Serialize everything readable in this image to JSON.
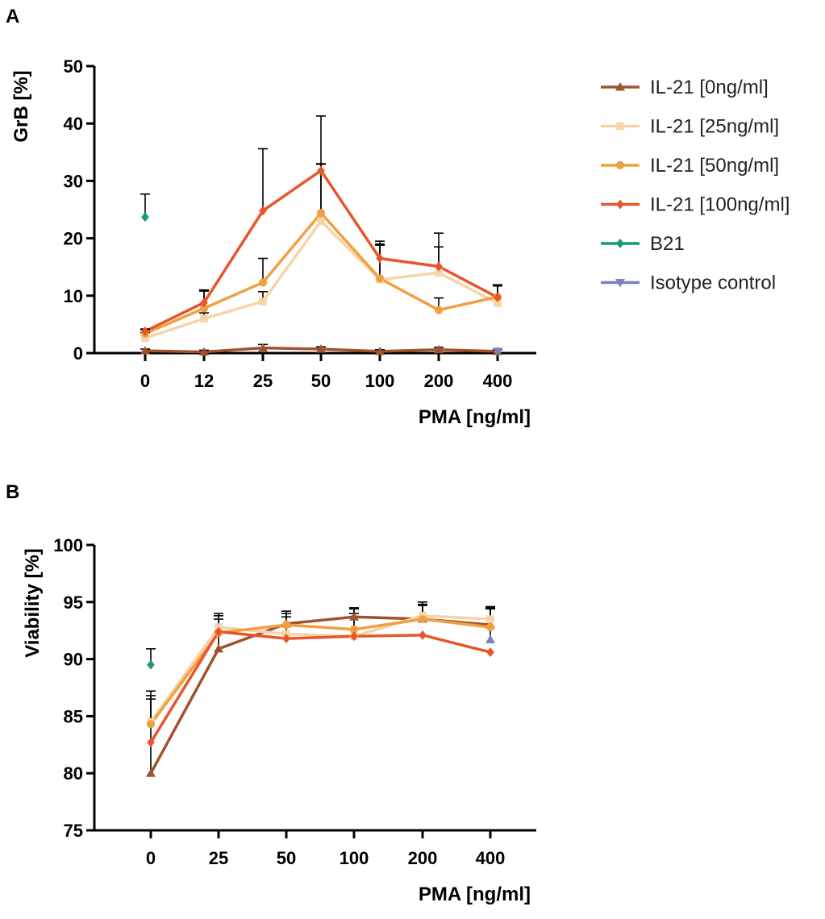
{
  "chart_data": [
    {
      "panel": "A",
      "type": "line",
      "xlabel": "PMA [ng/ml]",
      "ylabel": "GrB [%]",
      "categories": [
        "0",
        "12",
        "25",
        "50",
        "100",
        "200",
        "400"
      ],
      "ylim": [
        0,
        50
      ],
      "yticks": [
        0,
        10,
        20,
        30,
        40,
        50
      ],
      "series": [
        {
          "name": "IL-21 [0ng/ml]",
          "color": "#a0522d",
          "marker": "triangle-up",
          "values": [
            0.4,
            0.2,
            0.9,
            0.7,
            0.3,
            0.6,
            0.3
          ],
          "errors": [
            0.3,
            0.3,
            0.6,
            0.4,
            0.3,
            0.4,
            0.3
          ]
        },
        {
          "name": "IL-21 [25ng/ml]",
          "color": "#f8d3a9",
          "marker": "square",
          "values": [
            2.6,
            6.0,
            9.0,
            23.0,
            12.8,
            14.0,
            8.7
          ],
          "errors": [
            1.0,
            1.0,
            1.7,
            10.0,
            6.0,
            4.5,
            3.2
          ]
        },
        {
          "name": "IL-21 [50ng/ml]",
          "color": "#f0a040",
          "marker": "circle",
          "values": [
            3.4,
            7.8,
            12.3,
            24.4,
            13.0,
            7.5,
            9.8
          ],
          "errors": [
            0.7,
            3.0,
            4.2,
            8.5,
            6.0,
            2.1,
            2.0
          ]
        },
        {
          "name": "IL-21 [100ng/ml]",
          "color": "#e8552a",
          "marker": "diamond",
          "values": [
            3.8,
            8.8,
            24.8,
            31.8,
            16.5,
            15.1,
            9.7
          ],
          "errors": [
            0.4,
            2.2,
            10.8,
            9.5,
            3.0,
            5.8,
            2.0
          ]
        },
        {
          "name": "B21",
          "color": "#1a9a70",
          "marker": "diamond",
          "values": [
            23.7,
            null,
            null,
            null,
            null,
            null,
            null
          ],
          "errors": [
            4.0,
            null,
            null,
            null,
            null,
            null,
            null
          ]
        },
        {
          "name": "Isotype control",
          "color": "#7b80c0",
          "marker": "triangle-down",
          "values": [
            null,
            null,
            null,
            null,
            null,
            null,
            0.3
          ],
          "errors": [
            null,
            null,
            null,
            null,
            null,
            null,
            0
          ]
        }
      ]
    },
    {
      "panel": "B",
      "type": "line",
      "xlabel": "PMA [ng/ml]",
      "ylabel": "Viability [%]",
      "categories": [
        "0",
        "25",
        "50",
        "100",
        "200",
        "400"
      ],
      "ylim": [
        75,
        100
      ],
      "yticks": [
        75,
        80,
        85,
        90,
        95,
        100
      ],
      "series": [
        {
          "name": "IL-21 [0ng/ml]",
          "color": "#a0522d",
          "marker": "triangle-up",
          "values": [
            80.0,
            90.9,
            93.1,
            93.7,
            93.5,
            93.0
          ],
          "errors": [
            6.5,
            2.6,
            0.9,
            0.8,
            1.2,
            1.5
          ]
        },
        {
          "name": "IL-21 [25ng/ml]",
          "color": "#f8d3a9",
          "marker": "square",
          "values": [
            84.5,
            92.8,
            92.2,
            92.0,
            93.8,
            93.5
          ],
          "errors": [
            2.3,
            1.0,
            1.5,
            2.0,
            1.0,
            1.0
          ]
        },
        {
          "name": "IL-21 [50ng/ml]",
          "color": "#f0a040",
          "marker": "circle",
          "values": [
            84.3,
            92.3,
            93.0,
            92.6,
            93.5,
            92.8
          ],
          "errors": [
            2.9,
            1.7,
            1.2,
            1.8,
            1.5,
            1.6
          ]
        },
        {
          "name": "IL-21 [100ng/ml]",
          "color": "#e8552a",
          "marker": "diamond",
          "values": [
            82.7,
            92.4,
            91.8,
            92.0,
            92.1,
            90.6
          ],
          "errors": [
            null,
            null,
            null,
            null,
            null,
            null
          ]
        },
        {
          "name": "B21",
          "color": "#1a9a70",
          "marker": "diamond",
          "values": [
            89.5,
            null,
            null,
            null,
            null,
            null
          ],
          "errors": [
            1.4,
            null,
            null,
            null,
            null,
            null
          ]
        },
        {
          "name": "Isotype control",
          "color": "#7b80c0",
          "marker": "triangle-up",
          "values": [
            null,
            null,
            null,
            null,
            null,
            91.7
          ],
          "errors": [
            null,
            null,
            null,
            null,
            null,
            2.9
          ]
        }
      ]
    }
  ],
  "legend": [
    {
      "label": "IL-21 [0ng/ml]",
      "color": "#a0522d",
      "marker": "triangle-up"
    },
    {
      "label": "IL-21 [25ng/ml]",
      "color": "#f8d3a9",
      "marker": "square"
    },
    {
      "label": "IL-21 [50ng/ml]",
      "color": "#f0a040",
      "marker": "circle"
    },
    {
      "label": "IL-21 [100ng/ml]",
      "color": "#e8552a",
      "marker": "diamond"
    },
    {
      "label": "B21",
      "color": "#1a9a70",
      "marker": "diamond"
    },
    {
      "label": "Isotype control",
      "color": "#7b80c0",
      "marker": "triangle-down"
    }
  ]
}
